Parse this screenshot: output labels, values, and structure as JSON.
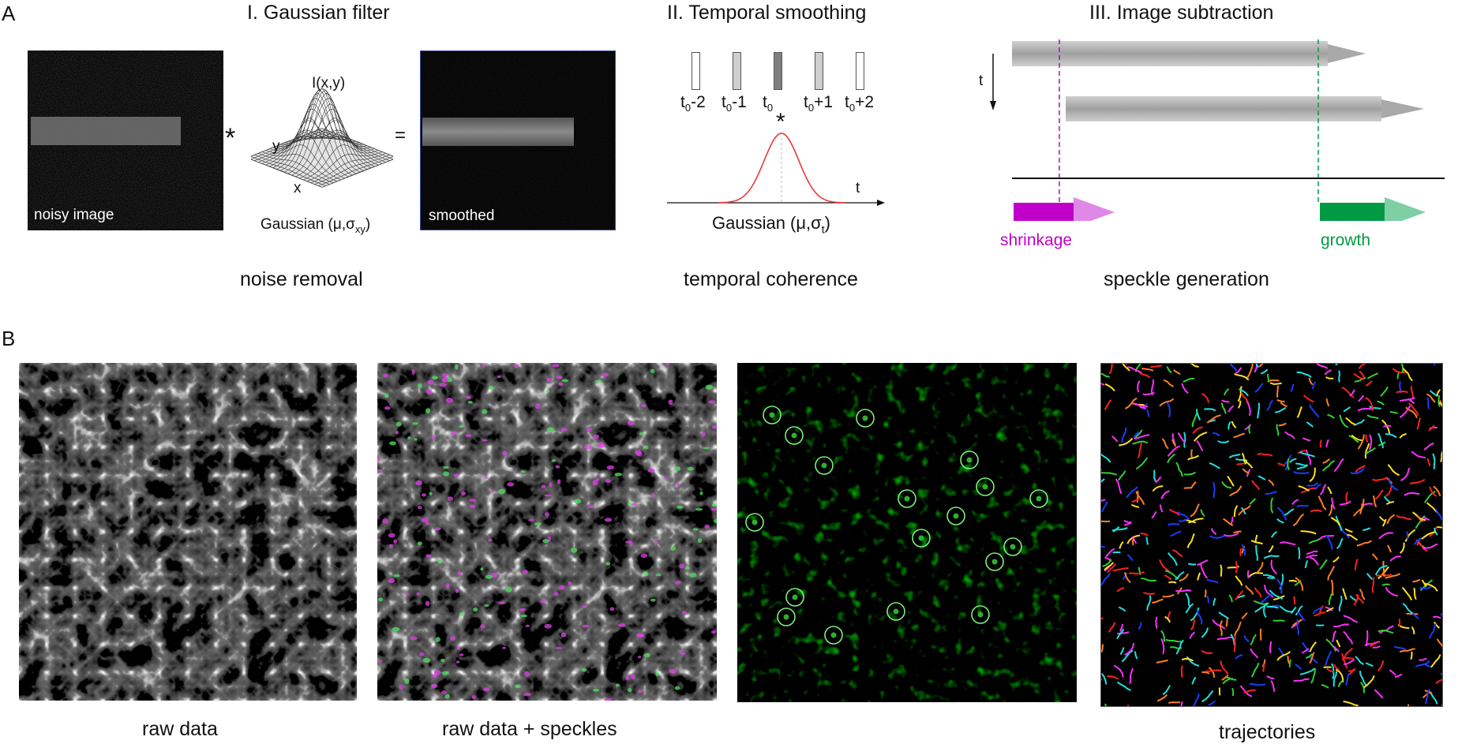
{
  "panel_a": {
    "letter": "A",
    "section1": {
      "title": "I. Gaussian filter",
      "caption": "noise removal",
      "noisy_label": "noisy image",
      "smoothed_label": "smoothed",
      "surface_axis_z": "I(x,y)",
      "surface_axis_y": "y",
      "surface_axis_x": "x",
      "gaussian_prefix": "Gaussian (μ,σ",
      "gaussian_sub": "xy",
      "gaussian_suffix": ")",
      "convolve_symbol": "*",
      "equals_symbol": "="
    },
    "section2": {
      "title": "II. Temporal smoothing",
      "caption": "temporal coherence",
      "frames": [
        {
          "base": "t",
          "sub": "0",
          "suffix": "-2",
          "fill": "#ffffff"
        },
        {
          "base": "t",
          "sub": "0",
          "suffix": "-1",
          "fill": "#cfcfcf"
        },
        {
          "base": "t",
          "sub": "0",
          "suffix": "",
          "fill": "#808080"
        },
        {
          "base": "t",
          "sub": "0",
          "suffix": "+1",
          "fill": "#cfcfcf"
        },
        {
          "base": "t",
          "sub": "0",
          "suffix": "+2",
          "fill": "#ffffff"
        }
      ],
      "marker": "*",
      "axis_label": "t",
      "gaussian_prefix": "Gaussian (μ,σ",
      "gaussian_sub": "t",
      "gaussian_suffix": ")",
      "curve_color": "#e8393a"
    },
    "section3": {
      "title": "III. Image subtraction",
      "caption": "speckle generation",
      "time_label": "t",
      "shrinkage_label": "shrinkage",
      "growth_label": "growth",
      "shrinkage_color": "#c000c8",
      "growth_color": "#009a44"
    }
  },
  "panel_b": {
    "letter": "B",
    "captions": [
      "raw data",
      "raw data + speckles",
      "",
      "trajectories"
    ],
    "speckle_color": "#7cf07c",
    "trajectory_colors": [
      "#ff2020",
      "#1a3cff",
      "#ffe020",
      "#20e0e0",
      "#ff30ff",
      "#30d030",
      "#ff8020"
    ]
  }
}
